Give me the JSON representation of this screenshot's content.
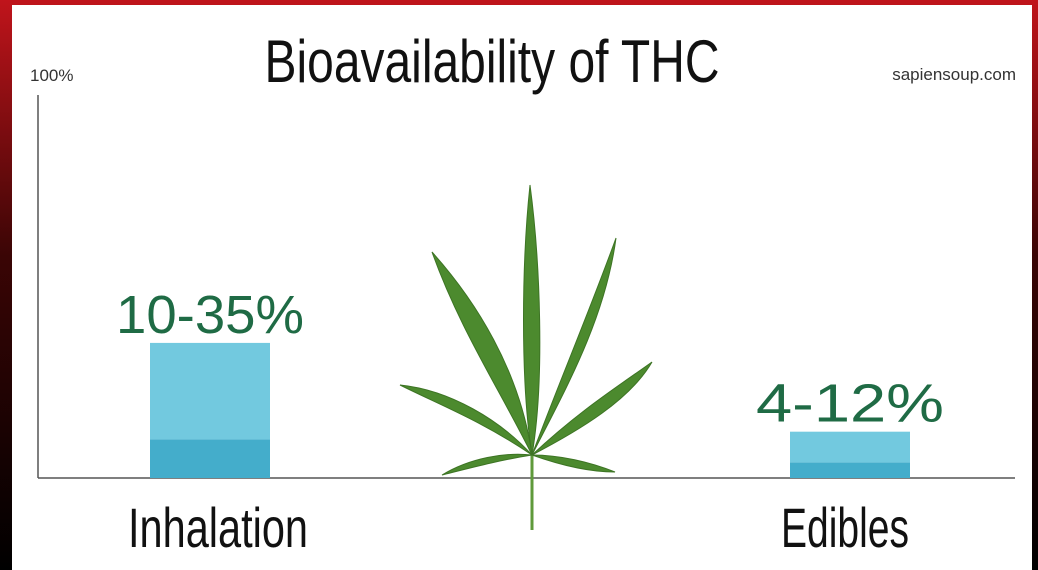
{
  "chart_data": {
    "type": "range-bar",
    "title": "Bioavailability of THC",
    "source": "sapiensoup.com",
    "categories": [
      "Inhalation",
      "Edibles"
    ],
    "low": [
      10,
      4
    ],
    "high": [
      35,
      12
    ],
    "value_labels": [
      "10-35%",
      "4-12%"
    ],
    "low_color": "#44adcb",
    "high_color": "#72c9df",
    "label_color": "#1f6b45",
    "ylim": [
      0,
      100
    ],
    "yticks": [
      {
        "value": 100,
        "label": "100%"
      }
    ]
  }
}
